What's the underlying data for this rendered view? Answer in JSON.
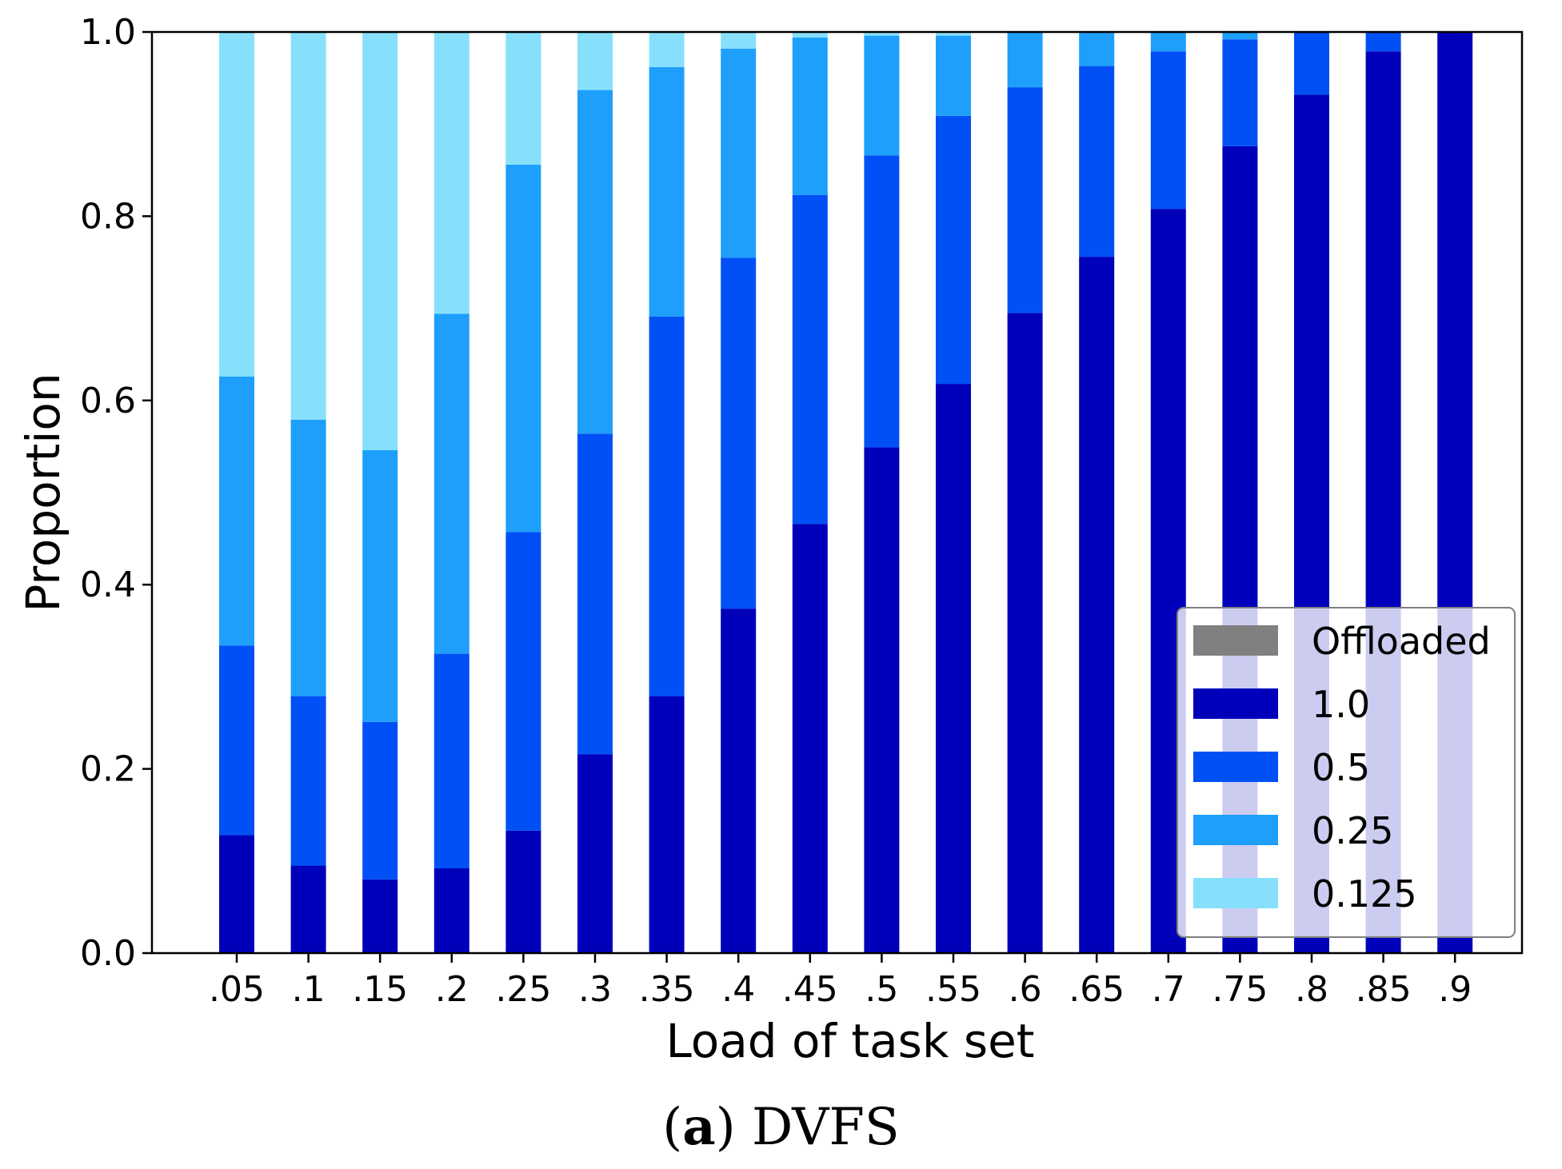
{
  "chart_data": {
    "type": "bar",
    "stacked": true,
    "xlabel": "Load of task set",
    "ylabel": "Proportion",
    "ylim": [
      0,
      1
    ],
    "yticks": [
      "0.0",
      "0.2",
      "0.4",
      "0.6",
      "0.8",
      "1.0"
    ],
    "categories": [
      ".05",
      ".1",
      ".15",
      ".2",
      ".25",
      ".3",
      ".35",
      ".4",
      ".45",
      ".5",
      ".55",
      ".6",
      ".65",
      ".7",
      ".75",
      ".8",
      ".85",
      ".9"
    ],
    "series": [
      {
        "name": "Offloaded",
        "color": "#808080",
        "values": [
          0,
          0,
          0,
          0,
          0,
          0,
          0,
          0,
          0,
          0,
          0,
          0,
          0,
          0,
          0,
          0,
          0,
          0
        ]
      },
      {
        "name": "1.0",
        "color": "#0000bb",
        "values": [
          0.128,
          0.095,
          0.08,
          0.092,
          0.133,
          0.216,
          0.279,
          0.374,
          0.466,
          0.549,
          0.618,
          0.695,
          0.756,
          0.808,
          0.876,
          0.932,
          0.979,
          1.0
        ]
      },
      {
        "name": "0.5",
        "color": "#0050f5",
        "values": [
          0.206,
          0.184,
          0.171,
          0.233,
          0.324,
          0.348,
          0.412,
          0.381,
          0.357,
          0.317,
          0.291,
          0.245,
          0.207,
          0.171,
          0.116,
          0.068,
          0.021,
          0.0
        ]
      },
      {
        "name": "0.25",
        "color": "#1e9ffb",
        "values": [
          0.292,
          0.3,
          0.295,
          0.369,
          0.399,
          0.373,
          0.271,
          0.227,
          0.171,
          0.13,
          0.087,
          0.06,
          0.037,
          0.021,
          0.008,
          0.0,
          0.0,
          0.0
        ]
      },
      {
        "name": "0.125",
        "color": "#87e0fb",
        "values": [
          0.374,
          0.421,
          0.454,
          0.306,
          0.144,
          0.063,
          0.038,
          0.018,
          0.006,
          0.004,
          0.004,
          0.0,
          0.0,
          0.0,
          0.0,
          0.0,
          0.0,
          0.0
        ]
      }
    ],
    "legend": {
      "position": "lower-right",
      "entries": [
        "Offloaded",
        "1.0",
        "0.5",
        "0.25",
        "0.125"
      ]
    },
    "grid": false
  },
  "caption": {
    "letter": "a",
    "text": " DVFS"
  }
}
